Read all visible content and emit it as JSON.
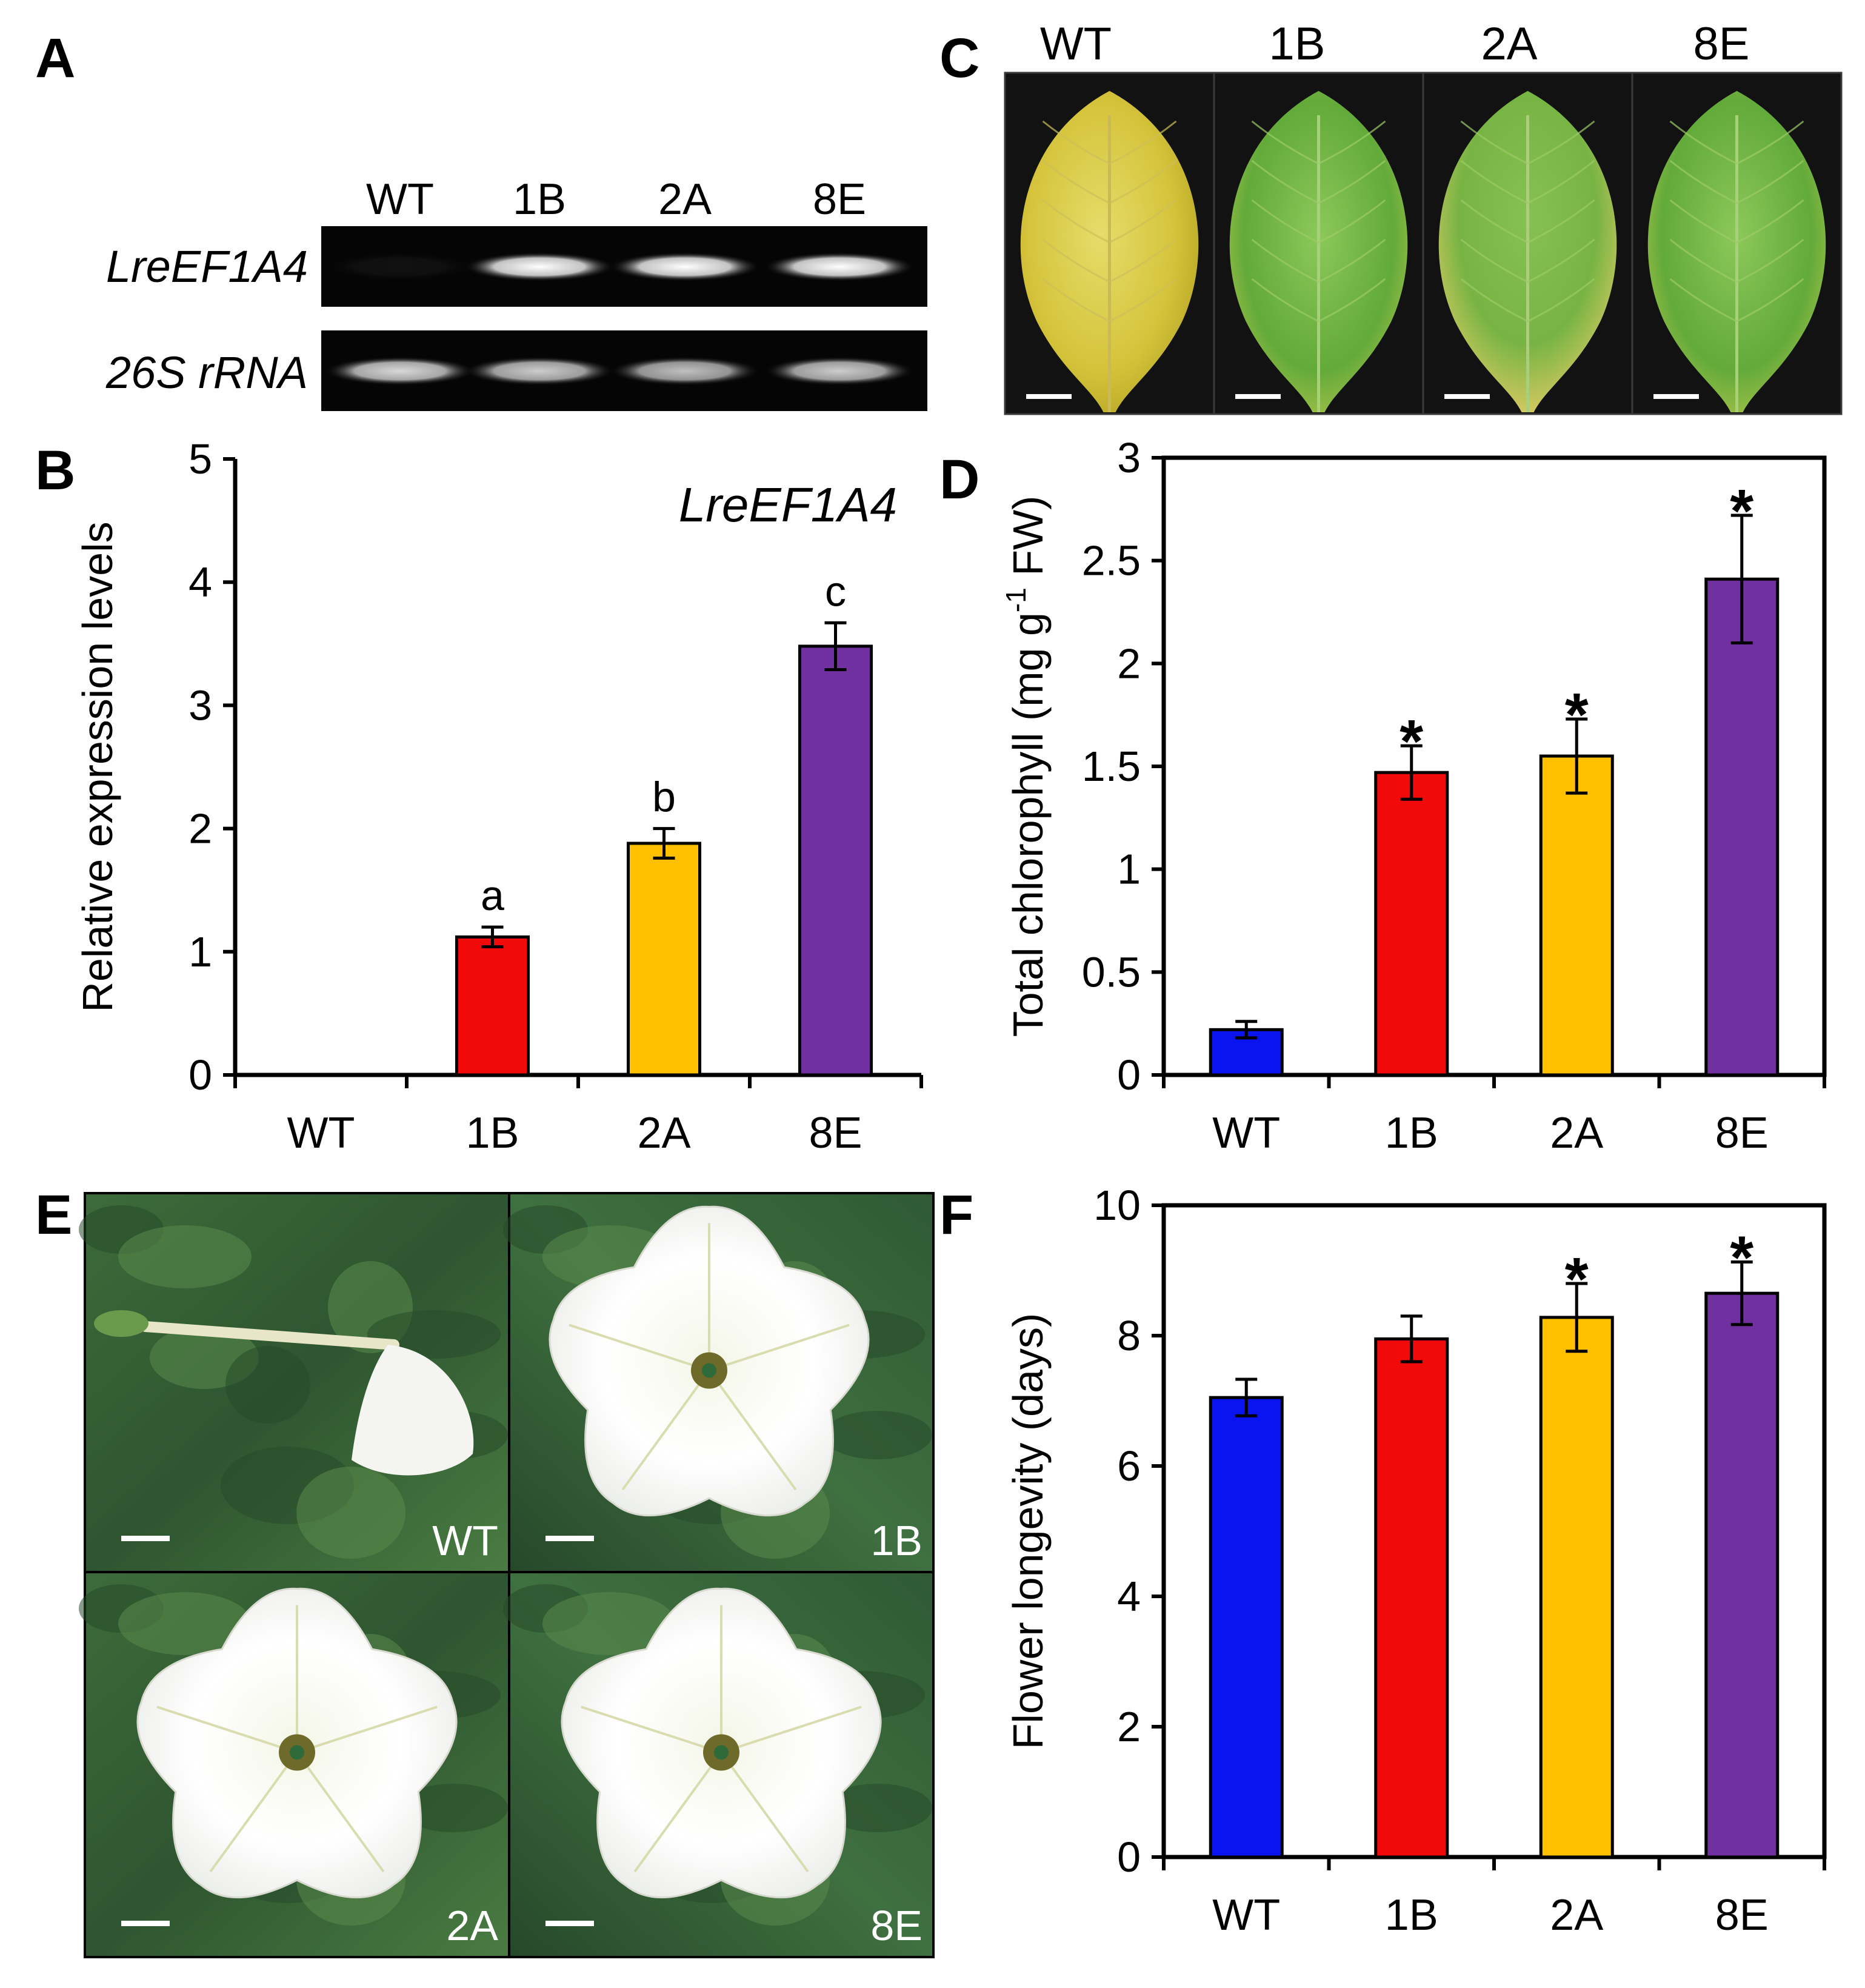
{
  "panels": {
    "a": "A",
    "b": "B",
    "c": "C",
    "d": "D",
    "e": "E",
    "f": "F"
  },
  "colors": {
    "WT": "#0a14f0",
    "1B": "#f20a0a",
    "2A": "#ffc000",
    "8E": "#7030a0"
  },
  "gel": {
    "lanes": [
      "WT",
      "1B",
      "2A",
      "8E"
    ],
    "rows": [
      {
        "label": "LreEF1A4",
        "bands": [
          0.05,
          1.0,
          1.0,
          1.0
        ]
      },
      {
        "label": "26S rRNA",
        "bands": [
          0.85,
          0.8,
          0.75,
          0.8
        ]
      }
    ]
  },
  "leaves": {
    "lanes": [
      "WT",
      "1B",
      "2A",
      "8E"
    ],
    "colors": [
      "yellow",
      "green",
      "green-yellow",
      "green"
    ]
  },
  "flowers": {
    "labels": [
      "WT",
      "1B",
      "2A",
      "8E"
    ]
  },
  "chart_data": [
    {
      "id": "B",
      "type": "bar",
      "categories": [
        "WT",
        "1B",
        "2A",
        "8E"
      ],
      "values": [
        0,
        1.12,
        1.88,
        3.48
      ],
      "errors": [
        0,
        0.08,
        0.12,
        0.19
      ],
      "annotations": [
        "",
        "a",
        "b",
        "c"
      ],
      "inset_label": "LreEF1A4",
      "ylabel": "Relative expression levels",
      "ylim": [
        0,
        5
      ],
      "yticks": [
        "0",
        "1",
        "2",
        "3",
        "4",
        "5"
      ]
    },
    {
      "id": "D",
      "type": "bar",
      "categories": [
        "WT",
        "1B",
        "2A",
        "8E"
      ],
      "values": [
        0.22,
        1.47,
        1.55,
        2.41
      ],
      "errors": [
        0.04,
        0.13,
        0.18,
        0.31
      ],
      "annotations": [
        "",
        "*",
        "*",
        "*"
      ],
      "ylabel_pre": "Total chlorophyll (mg g",
      "ylabel_sup": "-1",
      "ylabel_post": " FW)",
      "ylim": [
        0,
        3
      ],
      "yticks": [
        "0",
        "0.5",
        "1",
        "1.5",
        "2",
        "2.5",
        "3"
      ]
    },
    {
      "id": "F",
      "type": "bar",
      "categories": [
        "WT",
        "1B",
        "2A",
        "8E"
      ],
      "values": [
        7.05,
        7.95,
        8.28,
        8.65
      ],
      "errors": [
        0.28,
        0.35,
        0.52,
        0.48
      ],
      "annotations": [
        "",
        "",
        "*",
        "*"
      ],
      "ylabel": "Flower longevity (days)",
      "ylim": [
        0,
        10
      ],
      "yticks": [
        "0",
        "2",
        "4",
        "6",
        "8",
        "10"
      ]
    }
  ]
}
